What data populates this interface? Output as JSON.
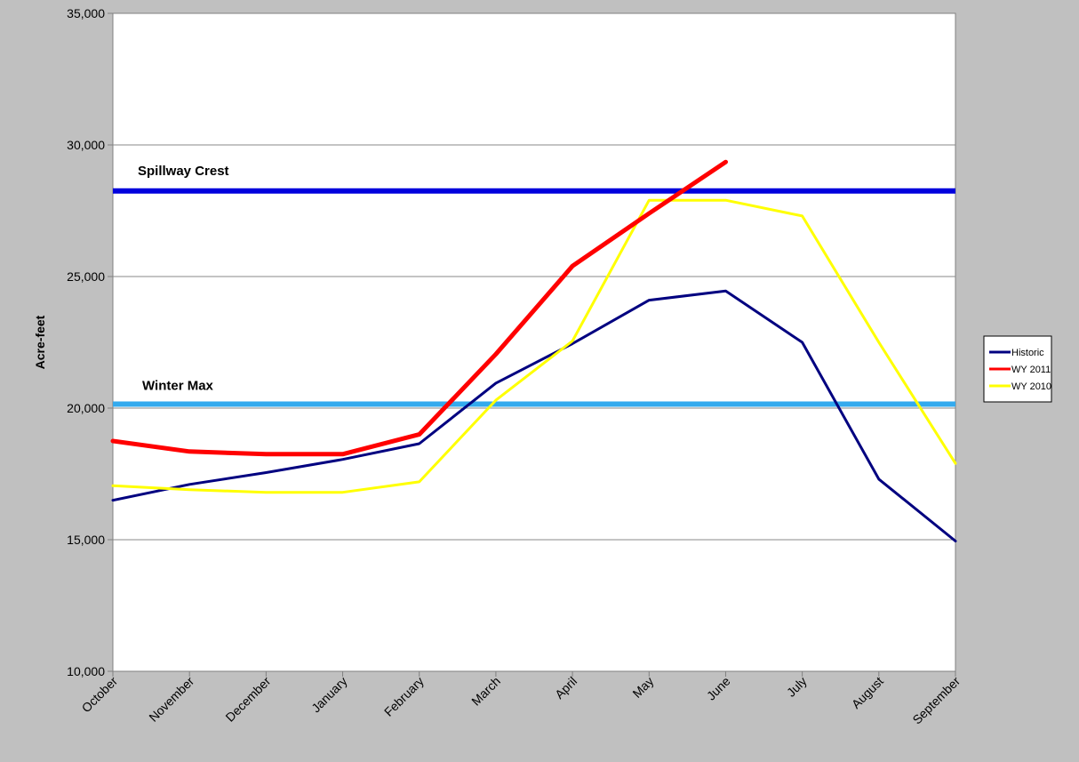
{
  "chart_data": {
    "type": "line",
    "title": "",
    "xlabel": "",
    "ylabel": "Acre-feet",
    "ylim": [
      10000,
      35000
    ],
    "yticks": [
      10000,
      15000,
      20000,
      25000,
      30000,
      35000
    ],
    "ytick_labels": [
      "10,000",
      "15,000",
      "20,000",
      "25,000",
      "30,000",
      "35,000"
    ],
    "grid": true,
    "legend_position": "right",
    "categories": [
      "October",
      "November",
      "December",
      "January",
      "February",
      "March",
      "April",
      "May",
      "June",
      "July",
      "August",
      "September"
    ],
    "series": [
      {
        "name": "Historic",
        "color": "#000080",
        "values": [
          16500,
          17100,
          17550,
          18050,
          18650,
          20950,
          22450,
          24100,
          24450,
          22500,
          17300,
          14950
        ]
      },
      {
        "name": "WY 2011",
        "color": "#ff0000",
        "values": [
          18750,
          18350,
          18250,
          18250,
          19000,
          22050,
          25400,
          27400,
          29350,
          null,
          null,
          null
        ]
      },
      {
        "name": "WY 2010",
        "color": "#ffff00",
        "values": [
          17050,
          16900,
          16800,
          16800,
          17200,
          20300,
          22550,
          27900,
          27900,
          27300,
          22500,
          17900
        ]
      }
    ],
    "reference_lines": [
      {
        "label": "Spillway Crest",
        "value": 28250,
        "color": "#0000dd"
      },
      {
        "label": "Winter Max",
        "value": 20150,
        "color": "#33aaee"
      }
    ]
  }
}
